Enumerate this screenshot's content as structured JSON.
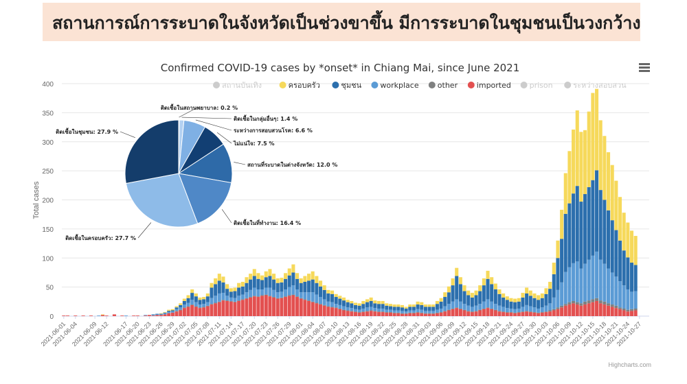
{
  "banner": {
    "text": "สถานการณ์การระบาดในจังหวัดเป็นช่วงขาขึ้น มีการระบาดในชุมชนเป็นวงกว้าง"
  },
  "credits": "Highcharts.com",
  "icons": {
    "menu": "hamburger-menu-icon"
  },
  "chart_data": [
    {
      "type": "bar",
      "stacked": true,
      "title": "Confirmed COVID-19 cases by *onset* in Chiang Mai, since June 2021",
      "xlabel": "",
      "ylabel": "Total cases",
      "ylim": [
        0,
        400
      ],
      "yticks": [
        0,
        50,
        100,
        150,
        200,
        250,
        300,
        350,
        400
      ],
      "grid": true,
      "legend_position": "top-right",
      "x_start": "2021-06-01",
      "x_end": "2021-10-29",
      "x_tick_labels": [
        "2021-06-01",
        "2021-06-04",
        "2021-06-09",
        "2021-06-12",
        "2021-06-17",
        "2021-06-20",
        "2021-06-23",
        "2021-06-26",
        "2021-06-29",
        "2021-07-02",
        "2021-07-05",
        "2021-07-08",
        "2021-07-11",
        "2021-07-14",
        "2021-07-17",
        "2021-07-20",
        "2021-07-23",
        "2021-07-26",
        "2021-07-29",
        "2021-08-01",
        "2021-08-04",
        "2021-08-07",
        "2021-08-10",
        "2021-08-13",
        "2021-08-16",
        "2021-08-19",
        "2021-08-22",
        "2021-08-25",
        "2021-08-28",
        "2021-08-31",
        "2021-09-03",
        "2021-09-06",
        "2021-09-09",
        "2021-09-12",
        "2021-09-15",
        "2021-09-18",
        "2021-09-21",
        "2021-09-24",
        "2021-09-27",
        "2021-09-30",
        "2021-10-03",
        "2021-10-06",
        "2021-10-09",
        "2021-10-12",
        "2021-10-15",
        "2021-10-18",
        "2021-10-21",
        "2021-10-24",
        "2021-10-27"
      ],
      "legend": [
        {
          "name": "สถานบันเทิง",
          "color": "#cccccc",
          "visible": false
        },
        {
          "name": "ครอบครัว",
          "color": "#f6d95b",
          "visible": true
        },
        {
          "name": "ชุมชน",
          "color": "#2c6fad",
          "visible": true
        },
        {
          "name": "workplace",
          "color": "#5b9bd5",
          "visible": true
        },
        {
          "name": "other",
          "color": "#7f8080",
          "visible": true
        },
        {
          "name": "imported",
          "color": "#e35050",
          "visible": true
        },
        {
          "name": "prison",
          "color": "#cccccc",
          "visible": false
        },
        {
          "name": "ระหว่างสอบสวน",
          "color": "#cccccc",
          "visible": false
        }
      ],
      "series_order_bottom_to_top": [
        "imported",
        "other",
        "workplace",
        "ชุมชน",
        "ครอบครัว"
      ],
      "series": [
        {
          "name": "imported",
          "values": [
            1,
            1,
            0,
            1,
            0,
            1,
            0,
            1,
            0,
            0,
            2,
            1,
            0,
            3,
            0,
            1,
            0,
            0,
            1,
            1,
            0,
            1,
            2,
            1,
            2,
            2,
            3,
            5,
            6,
            8,
            10,
            14,
            16,
            19,
            16,
            14,
            15,
            17,
            20,
            22,
            24,
            27,
            26,
            25,
            24,
            26,
            28,
            30,
            32,
            34,
            33,
            35,
            36,
            34,
            32,
            30,
            31,
            33,
            35,
            36,
            33,
            30,
            28,
            26,
            24,
            22,
            20,
            18,
            16,
            15,
            14,
            12,
            10,
            9,
            8,
            7,
            6,
            7,
            8,
            9,
            8,
            7,
            7,
            6,
            6,
            5,
            5,
            4,
            4,
            5,
            5,
            6,
            5,
            4,
            4,
            4,
            5,
            6,
            8,
            10,
            12,
            14,
            12,
            10,
            8,
            7,
            8,
            10,
            12,
            14,
            12,
            10,
            8,
            7,
            6,
            6,
            5,
            6,
            7,
            8,
            7,
            6,
            5,
            6,
            7,
            8,
            10,
            12,
            15,
            18,
            20,
            22,
            20,
            18,
            20,
            22,
            24,
            26,
            22,
            20,
            18,
            16,
            14,
            12,
            10,
            8,
            9,
            10
          ]
        },
        {
          "name": "other",
          "values": [
            0,
            0,
            0,
            0,
            0,
            0,
            0,
            0,
            0,
            0,
            0,
            0,
            0,
            0,
            0,
            0,
            0,
            0,
            0,
            0,
            0,
            0,
            0,
            0,
            0,
            0,
            0,
            0,
            0,
            1,
            1,
            1,
            1,
            1,
            1,
            1,
            1,
            1,
            1,
            1,
            1,
            1,
            1,
            1,
            1,
            1,
            1,
            1,
            1,
            1,
            1,
            1,
            1,
            1,
            1,
            1,
            1,
            1,
            1,
            1,
            1,
            1,
            1,
            1,
            1,
            1,
            1,
            1,
            1,
            1,
            1,
            1,
            1,
            1,
            1,
            1,
            1,
            1,
            1,
            1,
            1,
            1,
            1,
            1,
            1,
            1,
            1,
            1,
            1,
            1,
            1,
            1,
            1,
            1,
            1,
            1,
            1,
            1,
            1,
            1,
            1,
            1,
            1,
            1,
            1,
            1,
            1,
            1,
            1,
            1,
            1,
            1,
            1,
            1,
            1,
            1,
            1,
            1,
            1,
            1,
            1,
            1,
            1,
            1,
            1,
            2,
            2,
            3,
            3,
            3,
            4,
            4,
            4,
            4,
            5,
            5,
            5,
            5,
            5,
            5,
            4,
            4,
            4,
            3,
            3,
            3,
            3,
            3
          ]
        },
        {
          "name": "workplace",
          "values": [
            0,
            0,
            0,
            0,
            0,
            0,
            0,
            0,
            0,
            1,
            0,
            0,
            0,
            0,
            0,
            0,
            1,
            0,
            0,
            0,
            0,
            1,
            0,
            1,
            1,
            1,
            2,
            2,
            2,
            3,
            4,
            5,
            6,
            8,
            7,
            5,
            5,
            6,
            10,
            12,
            14,
            12,
            8,
            6,
            6,
            8,
            8,
            10,
            12,
            14,
            12,
            10,
            12,
            14,
            12,
            10,
            10,
            12,
            14,
            16,
            12,
            10,
            12,
            14,
            16,
            14,
            12,
            10,
            8,
            8,
            6,
            6,
            6,
            5,
            5,
            4,
            4,
            5,
            6,
            6,
            5,
            5,
            5,
            4,
            4,
            4,
            4,
            4,
            3,
            4,
            4,
            5,
            5,
            4,
            4,
            4,
            5,
            6,
            8,
            10,
            12,
            14,
            12,
            10,
            9,
            8,
            9,
            10,
            12,
            14,
            12,
            10,
            9,
            8,
            7,
            6,
            6,
            6,
            8,
            10,
            9,
            8,
            7,
            8,
            10,
            12,
            20,
            30,
            40,
            55,
            60,
            65,
            70,
            60,
            65,
            70,
            75,
            80,
            70,
            65,
            60,
            55,
            50,
            45,
            40,
            35,
            30,
            30
          ]
        },
        {
          "name": "ชุมชน",
          "values": [
            0,
            0,
            0,
            0,
            0,
            0,
            0,
            0,
            0,
            0,
            0,
            0,
            0,
            0,
            0,
            0,
            0,
            0,
            0,
            0,
            0,
            0,
            0,
            1,
            1,
            1,
            1,
            2,
            2,
            3,
            4,
            6,
            8,
            12,
            10,
            8,
            8,
            10,
            18,
            20,
            22,
            18,
            12,
            10,
            12,
            14,
            14,
            16,
            18,
            20,
            18,
            16,
            18,
            20,
            18,
            16,
            16,
            18,
            20,
            22,
            18,
            16,
            18,
            20,
            22,
            20,
            18,
            16,
            14,
            14,
            12,
            11,
            10,
            9,
            8,
            7,
            7,
            8,
            9,
            10,
            8,
            8,
            8,
            7,
            6,
            6,
            6,
            6,
            5,
            6,
            6,
            8,
            8,
            7,
            7,
            7,
            10,
            12,
            16,
            20,
            28,
            40,
            30,
            22,
            18,
            16,
            18,
            22,
            28,
            35,
            30,
            25,
            20,
            16,
            14,
            12,
            12,
            12,
            16,
            20,
            18,
            16,
            15,
            16,
            20,
            25,
            40,
            55,
            75,
            100,
            110,
            120,
            130,
            115,
            120,
            125,
            130,
            140,
            120,
            110,
            100,
            90,
            80,
            70,
            60,
            55,
            50,
            45
          ]
        },
        {
          "name": "ครอบครัว",
          "values": [
            0,
            0,
            0,
            0,
            0,
            0,
            0,
            0,
            0,
            0,
            1,
            0,
            0,
            0,
            0,
            0,
            0,
            0,
            0,
            0,
            0,
            0,
            0,
            0,
            0,
            1,
            1,
            2,
            2,
            2,
            3,
            4,
            5,
            6,
            5,
            4,
            4,
            5,
            8,
            10,
            12,
            10,
            8,
            6,
            6,
            8,
            8,
            10,
            10,
            12,
            10,
            8,
            10,
            12,
            10,
            8,
            8,
            10,
            12,
            14,
            10,
            8,
            10,
            12,
            14,
            12,
            10,
            8,
            6,
            6,
            5,
            5,
            5,
            4,
            4,
            4,
            4,
            5,
            5,
            6,
            5,
            5,
            5,
            4,
            4,
            4,
            4,
            4,
            3,
            4,
            4,
            5,
            5,
            4,
            4,
            4,
            5,
            6,
            8,
            10,
            12,
            14,
            12,
            10,
            8,
            8,
            8,
            10,
            12,
            14,
            12,
            10,
            8,
            7,
            6,
            6,
            6,
            6,
            8,
            10,
            9,
            8,
            8,
            8,
            10,
            12,
            20,
            30,
            50,
            70,
            90,
            110,
            130,
            120,
            110,
            130,
            150,
            140,
            120,
            110,
            100,
            95,
            85,
            75,
            65,
            60,
            55,
            50
          ]
        }
      ]
    },
    {
      "type": "pie",
      "slices": [
        {
          "label": "ติดเชื้อในสถานพยาบาล: 0.2 %",
          "value": 0.2,
          "color": "#9fc5ee"
        },
        {
          "label": "ติดเชื้อในกลุ่มอื่นๆ: 1.4 %",
          "value": 1.4,
          "color": "#b3d1f2"
        },
        {
          "label": "ระหว่างการสอบสวนโรค: 6.6 %",
          "value": 6.6,
          "color": "#7fb0e4"
        },
        {
          "label": "ไม่แน่ใจ: 7.5 %",
          "value": 7.5,
          "color": "#123f73"
        },
        {
          "label": "สถานที่ระบาดในต่างจังหวัด: 12.0 %",
          "value": 12.0,
          "color": "#2e6aa8"
        },
        {
          "label": "ติดเชื้อในที่ทำงาน: 16.4 %",
          "value": 16.4,
          "color": "#4f88c7"
        },
        {
          "label": "ติดเชื้อในครอบครัว: 27.7 %",
          "value": 27.7,
          "color": "#8ebbe8"
        },
        {
          "label": "ติดเชื้อในชุมชน: 27.9 %",
          "value": 27.9,
          "color": "#143d6b"
        }
      ]
    }
  ]
}
